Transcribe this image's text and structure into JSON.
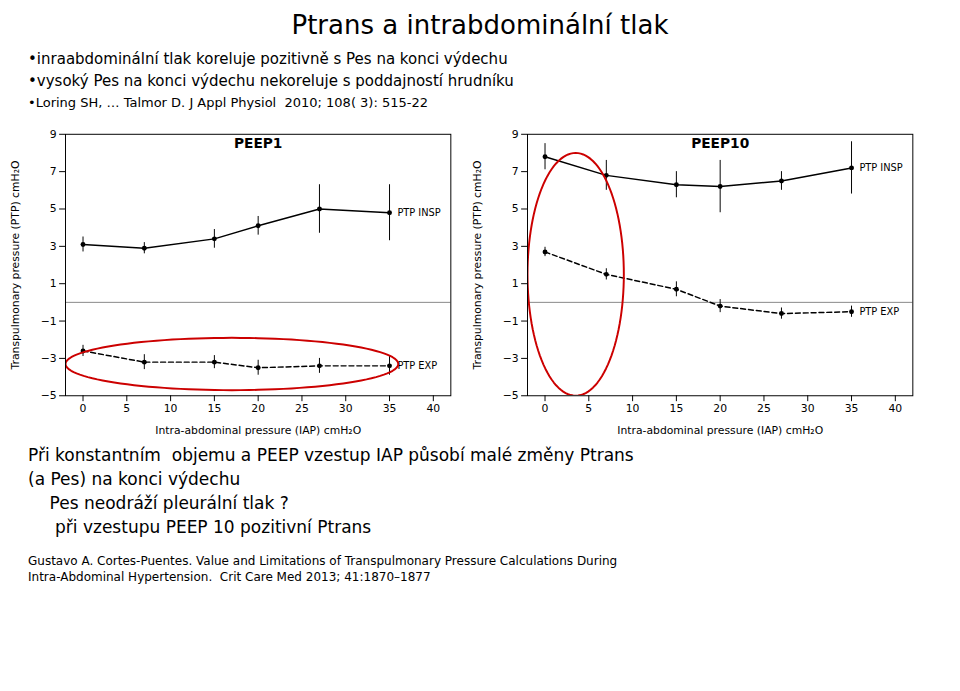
{
  "title": "Ptrans a intrabdominální tlak",
  "bullets": [
    "•inraabdominální tlak koreluje pozitivně s Pes na konci výdechu",
    "•vysoký Pes na konci výdechu nekoreluje s poddajností hrudníku",
    "•Loring SH, … Talmor D. J Appl Physiol  2010; 108( 3): 515-22"
  ],
  "notes": [
    "Při konstantním  objemu a PEEP vzestup IAP působí malé změny Ptrans",
    "(a Pes) na konci výdechu",
    "    Pes neodráží pleurální tlak ?",
    "     při vzestupu PEEP 10 pozitivní Ptrans"
  ],
  "footer": [
    "Gustavo A. Cortes-Puentes. Value and Limitations of Transpulmonary Pressure Calculations During",
    "Intra-Abdominal Hypertension.  Crit Care Med 2013; 41:1870–1877"
  ],
  "chart_data": [
    {
      "type": "line",
      "title": "PEEP1",
      "x_label": "Intra-abdominal pressure (IAP) cmH₂O",
      "y_label": "Transpulmonary pressure (PTP) cmH₂O",
      "xlim": [
        -2,
        42
      ],
      "xticks": [
        0,
        5,
        10,
        15,
        20,
        25,
        30,
        35,
        40
      ],
      "ylim": [
        -5,
        9
      ],
      "yticks": [
        -5,
        -3,
        -1,
        1,
        3,
        5,
        7,
        9
      ],
      "grid": false,
      "series": [
        {
          "name": "PTP INSP",
          "color": "#000000",
          "line_style": "solid",
          "marker": "o",
          "x": [
            0,
            7,
            15,
            20,
            27,
            35
          ],
          "values": [
            3.1,
            2.9,
            3.4,
            4.1,
            5.0,
            4.8
          ],
          "yerr": [
            0.4,
            0.3,
            0.5,
            0.5,
            1.3,
            1.5
          ]
        },
        {
          "name": "PTP EXP",
          "color": "#000000",
          "line_style": "dashed",
          "marker": "o",
          "x": [
            0,
            7,
            15,
            20,
            27,
            35
          ],
          "values": [
            -2.6,
            -3.2,
            -3.2,
            -3.5,
            -3.4,
            -3.4
          ],
          "yerr": [
            0.3,
            0.4,
            0.35,
            0.4,
            0.4,
            0.5
          ]
        }
      ],
      "reference_lines": [
        {
          "y": 0,
          "color": "#888888"
        }
      ],
      "highlights": [
        {
          "x": 17,
          "y": -3.3,
          "width": 38,
          "height": 2.8,
          "color": "#cc0000"
        }
      ]
    },
    {
      "type": "line",
      "title": "PEEP10",
      "x_label": "Intra-abdominal pressure (IAP) cmH₂O",
      "y_label": "Transpulmonary pressure (PTP) cmH₂O",
      "xlim": [
        -2,
        42
      ],
      "xticks": [
        0,
        5,
        10,
        15,
        20,
        25,
        30,
        35,
        40
      ],
      "ylim": [
        -5,
        9
      ],
      "yticks": [
        -5,
        -3,
        -1,
        1,
        3,
        5,
        7,
        9
      ],
      "grid": false,
      "series": [
        {
          "name": "PTP INSP",
          "color": "#000000",
          "line_style": "solid",
          "marker": "o",
          "x": [
            0,
            7,
            15,
            20,
            27,
            35
          ],
          "values": [
            7.8,
            6.8,
            6.3,
            6.2,
            6.5,
            7.2
          ],
          "yerr": [
            0.7,
            0.8,
            0.7,
            1.4,
            0.5,
            1.4
          ]
        },
        {
          "name": "PTP EXP",
          "color": "#000000",
          "line_style": "dashed",
          "marker": "o",
          "x": [
            0,
            7,
            15,
            20,
            27,
            35
          ],
          "values": [
            2.7,
            1.5,
            0.7,
            -0.2,
            -0.6,
            -0.5
          ],
          "yerr": [
            0.25,
            0.3,
            0.4,
            0.35,
            0.3,
            0.3
          ]
        }
      ],
      "reference_lines": [
        {
          "y": 0,
          "color": "#888888"
        }
      ],
      "highlights": [
        {
          "x": 3.5,
          "y": 1.5,
          "width": 11,
          "height": 13,
          "color": "#cc0000"
        }
      ]
    }
  ]
}
